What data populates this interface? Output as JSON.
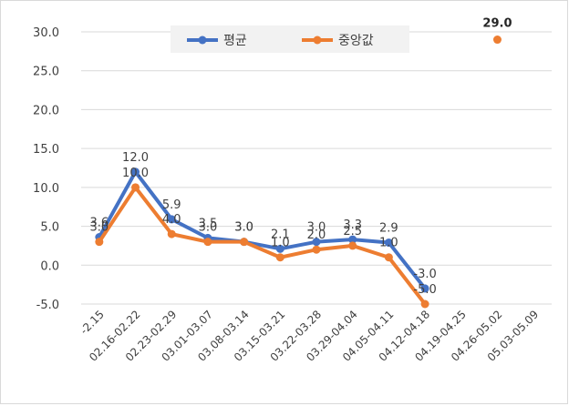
{
  "chart_data": {
    "type": "line",
    "categories": [
      "-2.15",
      "02.16-02.22",
      "02.23-02.29",
      "03.01-03.07",
      "03.08-03.14",
      "03.15-03.21",
      "03.22-03.28",
      "03.29-04.04",
      "04.05-04.11",
      "04.12-04.18",
      "04.19-04.25",
      "04.26-05.02",
      "05.03-05.09"
    ],
    "ylim": [
      -5.0,
      30.0
    ],
    "yticks": [
      -5.0,
      0.0,
      5.0,
      10.0,
      15.0,
      20.0,
      25.0,
      30.0
    ],
    "grid": true,
    "legend_position": "top",
    "series": [
      {
        "name": "평균",
        "color": "#4472c4",
        "values": [
          3.6,
          12.0,
          5.9,
          3.5,
          3.0,
          2.1,
          3.0,
          3.3,
          2.9,
          -3.0,
          null,
          null,
          null
        ],
        "labels": [
          "3.6",
          "12.0",
          "5.9",
          "3.5",
          "3.0",
          "2.1",
          "3.0",
          "3.3",
          "2.9",
          "-3.0",
          null,
          null,
          null
        ]
      },
      {
        "name": "중앙값",
        "color": "#ed7d31",
        "values": [
          3.0,
          10.0,
          4.0,
          3.0,
          3.0,
          1.0,
          2.0,
          2.5,
          1.0,
          -5.0,
          null,
          29.0,
          null
        ],
        "labels": [
          "3.0",
          "10.0",
          "4.0",
          "3.0",
          "3.0",
          "1.0",
          "2.0",
          "2.5",
          "1.0",
          "-5.0",
          null,
          "29.0",
          null
        ]
      }
    ]
  }
}
